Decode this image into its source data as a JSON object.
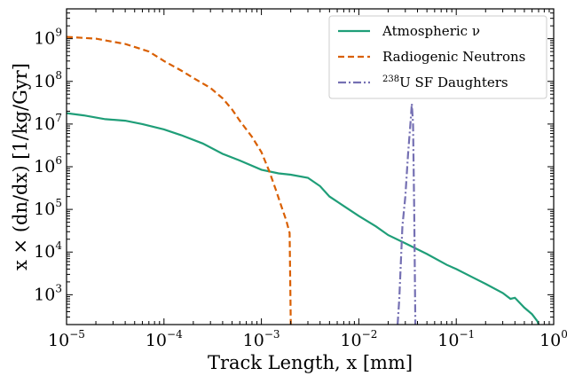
{
  "chart_data": {
    "type": "line",
    "title": "",
    "xlabel": "Track Length, x [mm]",
    "ylabel": "x × (dn/dx) [1/kg/Gyr]",
    "xscale": "log",
    "yscale": "log",
    "xlim": [
      1e-05,
      1
    ],
    "ylim": [
      200,
      5000000000
    ],
    "x_ticks": [
      {
        "value": 1e-05,
        "base": "10",
        "exp": "−5"
      },
      {
        "value": 0.0001,
        "base": "10",
        "exp": "−4"
      },
      {
        "value": 0.001,
        "base": "10",
        "exp": "−3"
      },
      {
        "value": 0.01,
        "base": "10",
        "exp": "−2"
      },
      {
        "value": 0.1,
        "base": "10",
        "exp": "−1"
      },
      {
        "value": 1,
        "base": "10",
        "exp": "0"
      }
    ],
    "y_ticks": [
      {
        "value": 1000,
        "base": "10",
        "exp": "3"
      },
      {
        "value": 10000,
        "base": "10",
        "exp": "4"
      },
      {
        "value": 100000,
        "base": "10",
        "exp": "5"
      },
      {
        "value": 1000000,
        "base": "10",
        "exp": "6"
      },
      {
        "value": 10000000,
        "base": "10",
        "exp": "7"
      },
      {
        "value": 100000000,
        "base": "10",
        "exp": "8"
      },
      {
        "value": 1000000000,
        "base": "10",
        "exp": "9"
      }
    ],
    "grid": false,
    "legend_position": "top-right",
    "series": [
      {
        "name": "Atmospheric ν",
        "color": "#1f9e78",
        "dash": "solid",
        "points": [
          [
            1e-05,
            18000000.0
          ],
          [
            1.5e-05,
            16000000.0
          ],
          [
            2.5e-05,
            13000000.0
          ],
          [
            4e-05,
            12000000.0
          ],
          [
            6e-05,
            10000000.0
          ],
          [
            0.0001,
            7500000.0
          ],
          [
            0.00015,
            5500000.0
          ],
          [
            0.00025,
            3500000.0
          ],
          [
            0.0004,
            2000000.0
          ],
          [
            0.0006,
            1400000.0
          ],
          [
            0.001,
            850000.0
          ],
          [
            0.0015,
            700000.0
          ],
          [
            0.002,
            650000.0
          ],
          [
            0.003,
            550000.0
          ],
          [
            0.004,
            350000.0
          ],
          [
            0.005,
            200000.0
          ],
          [
            0.007,
            120000.0
          ],
          [
            0.01,
            70000.0
          ],
          [
            0.015,
            40000.0
          ],
          [
            0.02,
            25000.0
          ],
          [
            0.03,
            16000.0
          ],
          [
            0.05,
            9000.0
          ],
          [
            0.08,
            5000.0
          ],
          [
            0.1,
            4000.0
          ],
          [
            0.15,
            2500.0
          ],
          [
            0.2,
            1800.0
          ],
          [
            0.3,
            1100.0
          ],
          [
            0.36,
            800
          ],
          [
            0.4,
            850
          ],
          [
            0.5,
            500
          ],
          [
            0.6,
            350
          ],
          [
            0.68,
            240
          ],
          [
            0.7,
            200
          ]
        ]
      },
      {
        "name": "Radiogenic Neutrons",
        "color": "#d95f02",
        "dash": "dashed",
        "points": [
          [
            1e-05,
            1100000000.0
          ],
          [
            2e-05,
            1000000000.0
          ],
          [
            4e-05,
            750000000.0
          ],
          [
            7e-05,
            500000000.0
          ],
          [
            0.0001,
            300000000.0
          ],
          [
            0.00015,
            180000000.0
          ],
          [
            0.0002,
            120000000.0
          ],
          [
            0.0003,
            70000000.0
          ],
          [
            0.0004,
            40000000.0
          ],
          [
            0.0005,
            22000000.0
          ],
          [
            0.0006,
            12000000.0
          ],
          [
            0.0008,
            5000000.0
          ],
          [
            0.001,
            2200000.0
          ],
          [
            0.0012,
            800000.0
          ],
          [
            0.0014,
            300000.0
          ],
          [
            0.0016,
            120000.0
          ],
          [
            0.0018,
            55000.0
          ],
          [
            0.00195,
            28000.0
          ],
          [
            0.002,
            200
          ]
        ]
      },
      {
        "name": "²³⁸U SF Daughters",
        "color": "#7570b3",
        "dash": "dashdot",
        "points": [
          [
            0.025,
            200
          ],
          [
            0.026,
            800
          ],
          [
            0.027,
            6000.0
          ],
          [
            0.028,
            40000.0
          ],
          [
            0.03,
            200000.0
          ],
          [
            0.032,
            2000000.0
          ],
          [
            0.034,
            12000000.0
          ],
          [
            0.035,
            30000000.0
          ],
          [
            0.036,
            10000000.0
          ],
          [
            0.037,
            100000.0
          ],
          [
            0.038,
            200
          ]
        ]
      }
    ]
  },
  "legend": {
    "atm_label": "Atmospheric ν",
    "rad_label": "Radiogenic Neutrons",
    "sf_sup": "238",
    "sf_label": "U SF Daughters"
  }
}
